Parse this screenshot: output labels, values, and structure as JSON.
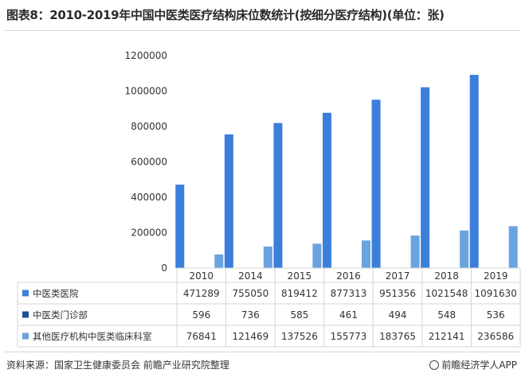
{
  "page": {
    "title": "图表8：2010-2019年中国中医类医疗结构床位数统计(按细分医疗结构)(单位：张)",
    "source": "资料来源：国家卫生健康委员会 前瞻产业研究院整理",
    "brand": "前瞻经济学人APP"
  },
  "colors": {
    "series1": "#3b7fdb",
    "series2": "#1f4e99",
    "series3": "#6aa3e0",
    "grid": "#d4d4d4",
    "text": "#333333"
  },
  "chart_data": {
    "type": "bar",
    "categories": [
      "2010",
      "2014",
      "2015",
      "2016",
      "2017",
      "2018",
      "2019"
    ],
    "ylim": [
      0,
      1200000
    ],
    "yticks": [
      "0",
      "200000",
      "400000",
      "600000",
      "800000",
      "1000000",
      "1200000"
    ],
    "series": [
      {
        "name": "中医类医院",
        "values": [
          471289,
          755050,
          819412,
          877313,
          951356,
          1021548,
          1091630
        ],
        "labels": [
          "471289",
          "755050",
          "819412",
          "877313",
          "951356",
          "1021548",
          "1091630"
        ]
      },
      {
        "name": "中医类门诊部",
        "values": [
          596,
          736,
          585,
          461,
          494,
          548,
          536
        ],
        "labels": [
          "596",
          "736",
          "585",
          "461",
          "494",
          "548",
          "536"
        ]
      },
      {
        "name": "其他医疗机构中医类临床科室",
        "values": [
          76841,
          121469,
          137526,
          155773,
          183765,
          212141,
          236586
        ],
        "labels": [
          "76841",
          "121469",
          "137526",
          "155773",
          "183765",
          "212141",
          "236586"
        ]
      }
    ]
  }
}
